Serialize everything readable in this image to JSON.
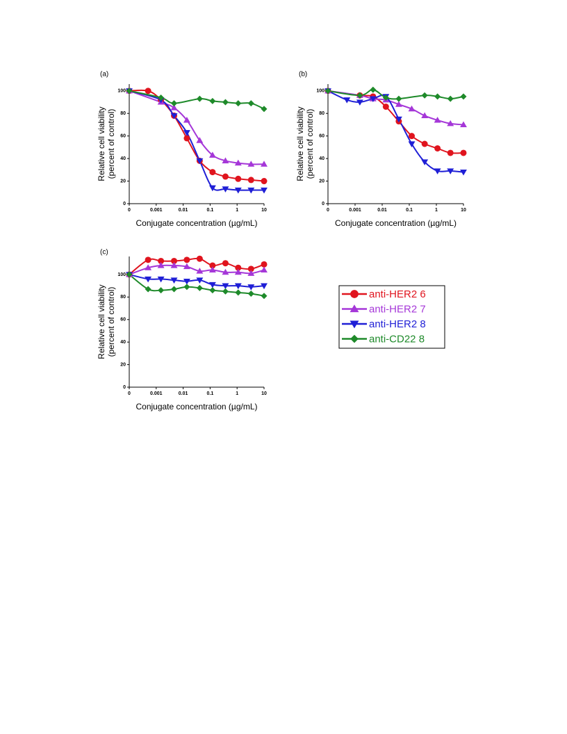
{
  "chart_data": [
    {
      "type": "scatter",
      "title": "(a)",
      "xlabel": "Conjugate concentration (µg/mL)",
      "ylabel": [
        "Relative cell viability",
        "(percent of control)"
      ],
      "xscale": "log",
      "x": [
        0,
        0.0005,
        0.0015,
        0.0046,
        0.0137,
        0.041,
        0.123,
        0.37,
        1.1,
        3.3,
        10
      ],
      "xlim": [
        0,
        10
      ],
      "xticks": [
        0,
        0.001,
        0.01,
        0.1,
        1,
        10
      ],
      "ylim": [
        0,
        106
      ],
      "yticks": [
        0,
        20,
        40,
        60,
        80,
        100
      ],
      "series": [
        {
          "color": "#e0141e",
          "marker": "circle",
          "values": [
            100,
            100,
            92,
            78,
            58,
            38,
            28,
            24,
            22,
            21,
            20
          ]
        },
        {
          "color": "#a537d8",
          "marker": "triangle-up",
          "values": [
            100,
            null,
            90,
            85,
            74,
            56,
            43,
            38,
            36,
            35,
            35
          ]
        },
        {
          "color": "#1f1fd6",
          "marker": "triangle-down",
          "values": [
            100,
            null,
            92,
            78,
            63,
            38,
            14,
            13,
            12,
            12,
            12
          ]
        },
        {
          "color": "#1e8a2a",
          "marker": "diamond",
          "values": [
            100,
            null,
            94,
            89,
            null,
            93,
            91,
            90,
            89,
            89,
            84
          ]
        }
      ]
    },
    {
      "type": "scatter",
      "title": "(b)",
      "xlabel": "Conjugate concentration (µg/mL)",
      "ylabel": [
        "Relative cell viability",
        "(percent of control)"
      ],
      "xscale": "log",
      "x": [
        0,
        0.0005,
        0.0015,
        0.0046,
        0.0137,
        0.041,
        0.123,
        0.37,
        1.1,
        3.3,
        10
      ],
      "xlim": [
        0,
        10
      ],
      "xticks": [
        0,
        0.001,
        0.01,
        0.1,
        1,
        10
      ],
      "ylim": [
        0,
        106
      ],
      "yticks": [
        0,
        20,
        40,
        60,
        80,
        100
      ],
      "series": [
        {
          "color": "#e0141e",
          "marker": "circle",
          "values": [
            100,
            null,
            96,
            95,
            86,
            73,
            60,
            53,
            49,
            45,
            45
          ]
        },
        {
          "color": "#a537d8",
          "marker": "triangle-up",
          "values": [
            100,
            null,
            96,
            93,
            92,
            88,
            84,
            78,
            74,
            71,
            70
          ]
        },
        {
          "color": "#1f1fd6",
          "marker": "triangle-down",
          "values": [
            100,
            92,
            90,
            93,
            95,
            75,
            53,
            37,
            29,
            29,
            28
          ]
        },
        {
          "color": "#1e8a2a",
          "marker": "diamond",
          "values": [
            100,
            null,
            96,
            101,
            94,
            93,
            null,
            96,
            95,
            93,
            95
          ]
        }
      ]
    },
    {
      "type": "scatter",
      "title": "(c)",
      "xlabel": "Conjugate concentration (µg/mL)",
      "ylabel": [
        "Relative cell viability",
        "(percent of control)"
      ],
      "xscale": "log",
      "x": [
        0,
        0.0005,
        0.0015,
        0.0046,
        0.0137,
        0.041,
        0.123,
        0.37,
        1.1,
        3.3,
        10
      ],
      "xlim": [
        0,
        10
      ],
      "xticks": [
        0,
        0.001,
        0.01,
        0.1,
        1,
        10
      ],
      "ylim": [
        0,
        116
      ],
      "yticks": [
        0,
        20,
        40,
        60,
        80,
        100
      ],
      "legend": "right",
      "series": [
        {
          "name": "anti-HER2 6",
          "color": "#e0141e",
          "marker": "circle",
          "values": [
            100,
            113,
            112,
            112,
            113,
            114,
            108,
            110,
            106,
            105,
            109
          ]
        },
        {
          "name": "anti-HER2 7",
          "color": "#a537d8",
          "marker": "triangle-up",
          "values": [
            100,
            106,
            108,
            108,
            107,
            103,
            104,
            102,
            102,
            101,
            104
          ]
        },
        {
          "name": "anti-HER2 8",
          "color": "#1f1fd6",
          "marker": "triangle-down",
          "values": [
            100,
            96,
            96,
            95,
            94,
            95,
            91,
            90,
            90,
            89,
            90
          ]
        },
        {
          "name": "anti-CD22 8",
          "color": "#1e8a2a",
          "marker": "diamond",
          "values": [
            100,
            87,
            86,
            87,
            89,
            88,
            86,
            85,
            84,
            83,
            81
          ]
        }
      ]
    }
  ]
}
